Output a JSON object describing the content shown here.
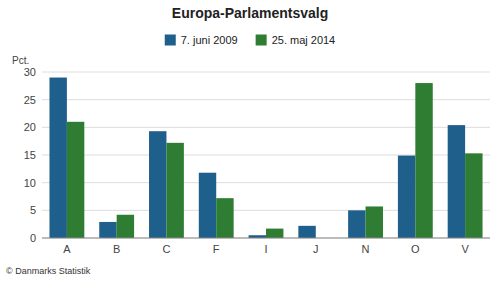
{
  "chart_data": {
    "type": "bar",
    "title": "Europa-Parlamentsvalg",
    "categories": [
      "A",
      "B",
      "C",
      "F",
      "I",
      "J",
      "N",
      "O",
      "V"
    ],
    "series": [
      {
        "name": "7. juni 2009",
        "color": "#1f5f8b",
        "values": [
          29.0,
          2.9,
          19.3,
          11.8,
          0.5,
          2.2,
          5.0,
          14.9,
          20.4
        ]
      },
      {
        "name": "25. maj 2014",
        "color": "#2e7d32",
        "values": [
          21.0,
          4.2,
          17.2,
          7.2,
          1.7,
          0.0,
          5.7,
          28.0,
          15.3
        ]
      }
    ],
    "ylabel": "Pct.",
    "ylim": [
      0,
      30
    ],
    "yticks": [
      0,
      5,
      10,
      15,
      20,
      25,
      30
    ],
    "grid": true,
    "legend": "top",
    "annotations": [
      "© Danmarks Statistik"
    ]
  }
}
